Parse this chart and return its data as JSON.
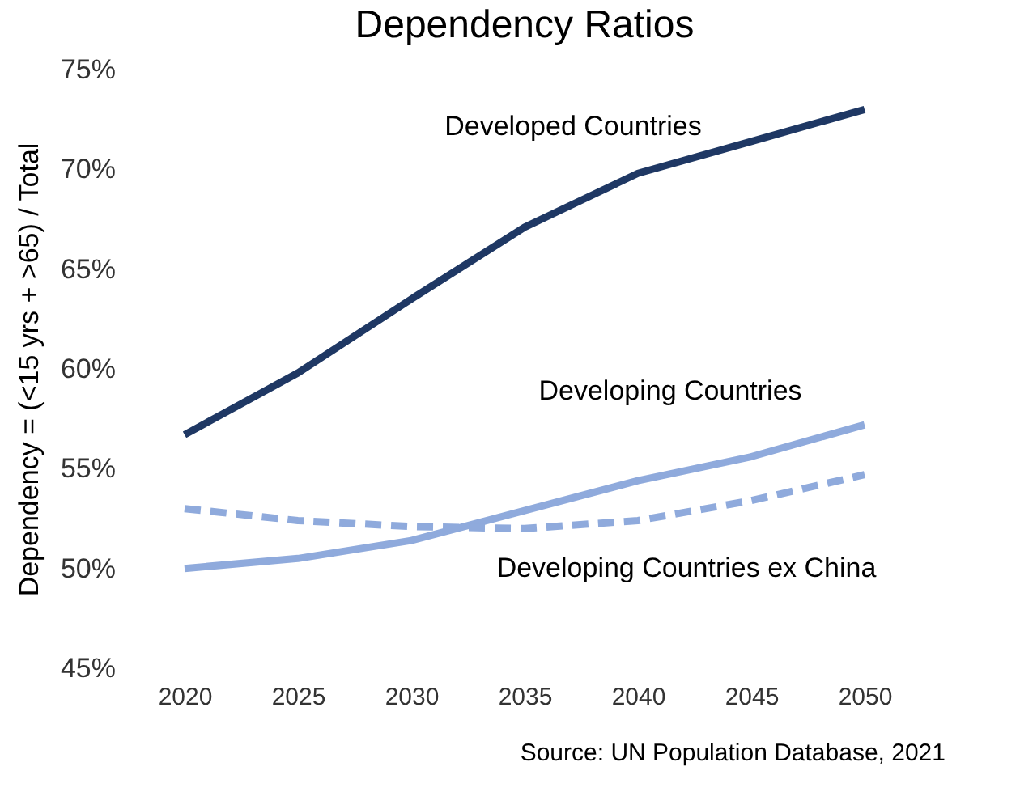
{
  "chart_data": {
    "type": "line",
    "title": "Dependency Ratios",
    "ylabel": "Dependency = (<15 yrs + >65) / Total",
    "categories": [
      "2020",
      "2025",
      "2030",
      "2035",
      "2040",
      "2045",
      "2050"
    ],
    "series": [
      {
        "name": "Developed Countries",
        "color": "#1f3864",
        "line_style": "solid",
        "values": [
          56.7,
          59.8,
          63.5,
          67.1,
          69.8,
          71.4,
          73.0
        ]
      },
      {
        "name": "Developing Countries",
        "color": "#8faadc",
        "line_style": "solid",
        "values": [
          50.0,
          50.5,
          51.4,
          52.9,
          54.4,
          55.6,
          57.2
        ]
      },
      {
        "name": "Developing Countries ex China",
        "color": "#8faadc",
        "line_style": "dashed",
        "values": [
          53.0,
          52.4,
          52.1,
          52.0,
          52.4,
          53.4,
          54.7
        ]
      }
    ],
    "ylim": [
      45,
      75
    ],
    "yticks": [
      {
        "value": 45,
        "label": "45%"
      },
      {
        "value": 50,
        "label": "50%"
      },
      {
        "value": 55,
        "label": "55%"
      },
      {
        "value": 60,
        "label": "60%"
      },
      {
        "value": 65,
        "label": "65%"
      },
      {
        "value": 70,
        "label": "70%"
      },
      {
        "value": 75,
        "label": "75%"
      }
    ],
    "grid": false,
    "legend": false,
    "marker": "none",
    "annotations": [
      "Source: UN Population Database, 2021"
    ]
  }
}
